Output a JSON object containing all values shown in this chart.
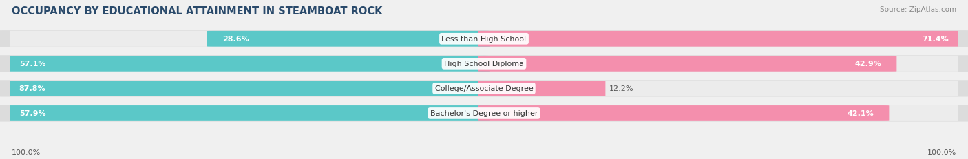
{
  "title": "OCCUPANCY BY EDUCATIONAL ATTAINMENT IN STEAMBOAT ROCK",
  "source": "Source: ZipAtlas.com",
  "categories": [
    "Less than High School",
    "High School Diploma",
    "College/Associate Degree",
    "Bachelor's Degree or higher"
  ],
  "owner_pct": [
    28.6,
    57.1,
    87.8,
    57.9
  ],
  "renter_pct": [
    71.4,
    42.9,
    12.2,
    42.1
  ],
  "owner_color": "#5BC8C8",
  "renter_color": "#F48FAD",
  "bg_color": "#f0f0f0",
  "bar_bg_color": "#e0e0e0",
  "row_bg_color": "#e8e8e8",
  "title_fontsize": 10.5,
  "cat_fontsize": 8.0,
  "pct_fontsize": 8.0,
  "tick_fontsize": 8.0,
  "source_fontsize": 7.5,
  "legend_fontsize": 8.0,
  "x_left_label": "100.0%",
  "x_right_label": "100.0%"
}
